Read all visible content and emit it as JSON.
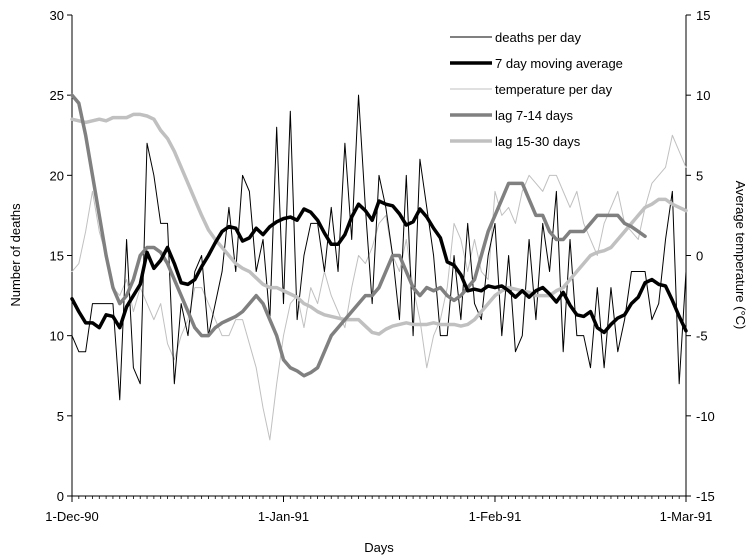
{
  "chart_data": {
    "type": "line",
    "title": "",
    "xlabel": "Days",
    "ylabel": "Number of deaths",
    "y2label": "Average temperature (°C)",
    "ylim": [
      0,
      30
    ],
    "y2lim": [
      -15,
      15
    ],
    "yticks": [
      "0",
      "5",
      "10",
      "15",
      "20",
      "25",
      "30"
    ],
    "y2ticks": [
      "-15",
      "-10",
      "-5",
      "0",
      "5",
      "10",
      "15"
    ],
    "x_start": "1-Dec-90",
    "x_end": "1-Mar-91",
    "xticks": [
      {
        "label": "1-Dec-90",
        "day": 0
      },
      {
        "label": "1-Jan-91",
        "day": 31
      },
      {
        "label": "1-Feb-91",
        "day": 62
      },
      {
        "label": "1-Mar-91",
        "day": 90
      }
    ],
    "legend_position": "top-right",
    "grid": false,
    "series": [
      {
        "name": "deaths per day",
        "axis": "left",
        "color": "#000000",
        "width": 1,
        "values": [
          10,
          9,
          9,
          12,
          12,
          12,
          12,
          6,
          16,
          8,
          7,
          22,
          20,
          17,
          17,
          7,
          12,
          10,
          14,
          15,
          10,
          12,
          14,
          18,
          14,
          20,
          19,
          14,
          16,
          11,
          23,
          12,
          24,
          11,
          15,
          17,
          17,
          14,
          18,
          14,
          22,
          16,
          25,
          18,
          12,
          20,
          18,
          15,
          11,
          20,
          10,
          21,
          18,
          15,
          10,
          10,
          15,
          11,
          17,
          12,
          11,
          15,
          17,
          10,
          15,
          9,
          10,
          16,
          11,
          17,
          14,
          19,
          9,
          16,
          10,
          10,
          8,
          13,
          8,
          13,
          9,
          11,
          14,
          14,
          14,
          11,
          12,
          16,
          19,
          7,
          14
        ]
      },
      {
        "name": "7 day  moving average",
        "axis": "left",
        "color": "#000000",
        "width": 3.5,
        "values": [
          12.3,
          11.5,
          10.8,
          10.8,
          10.5,
          11.3,
          11.2,
          10.5,
          11.8,
          12.5,
          13.2,
          15.2,
          14.2,
          14.7,
          15.5,
          14.5,
          13.3,
          13.2,
          13.5,
          14.3,
          15,
          15.8,
          16.5,
          16.8,
          16.7,
          15.9,
          16.1,
          16.7,
          16.3,
          16.8,
          17.1,
          17.3,
          17.4,
          17.2,
          17.9,
          17.7,
          17.2,
          16.4,
          15.7,
          15.7,
          16.3,
          17.4,
          18.2,
          17.8,
          17.2,
          18.4,
          18.2,
          18.1,
          17.6,
          16.9,
          17.1,
          17.9,
          17.4,
          16.7,
          16.1,
          14.6,
          14.4,
          13.8,
          12.8,
          12.9,
          12.8,
          13.1,
          13,
          13.1,
          12.8,
          12.4,
          12.8,
          12.4,
          12.8,
          13,
          12.6,
          12.1,
          12.7,
          11.9,
          11.3,
          11.2,
          11.5,
          10.5,
          10.2,
          10.7,
          11.1,
          11.3,
          12,
          12.4,
          13.3,
          13.5,
          13.2,
          13.1,
          12.2,
          11.2,
          10.3
        ]
      },
      {
        "name": "temperature per day",
        "axis": "right",
        "color": "#c0c0c0",
        "width": 1,
        "values": [
          -1,
          -0.5,
          1.5,
          4,
          1.5,
          0,
          -2,
          -2.5,
          -1.5,
          -3.5,
          -2,
          -3,
          -4,
          -3,
          -5.5,
          -6.5,
          -5,
          -4,
          -2,
          -2,
          -3,
          -4,
          -5,
          -5,
          -4,
          -4,
          -5.5,
          -7,
          -9.5,
          -11.5,
          -8,
          -5,
          -3,
          -2.5,
          -4.5,
          -2,
          -3,
          -1,
          -2.5,
          -3.5,
          -4.5,
          -2,
          0,
          -0.5,
          0.5,
          2,
          2.5,
          0,
          -1,
          1,
          -2,
          -4,
          -7,
          -5,
          -4,
          -2,
          2,
          1,
          -1,
          1,
          -1,
          -1.5,
          4,
          2.5,
          3,
          2,
          4,
          5,
          4.5,
          4,
          5,
          5,
          4,
          3,
          4,
          2,
          1,
          0,
          2,
          3,
          4,
          2,
          1.5,
          1,
          3,
          4.5,
          5,
          5.5,
          7.5,
          6.5,
          5.5
        ]
      },
      {
        "name": "lag 7-14 days",
        "axis": "right",
        "color": "#808080",
        "width": 3.5,
        "values": [
          10,
          9.5,
          7.5,
          5,
          2.5,
          0,
          -2,
          -3,
          -2.5,
          -1.5,
          0,
          0.5,
          0.5,
          0.2,
          -0.5,
          -1.5,
          -2.5,
          -3.5,
          -4.5,
          -5,
          -5,
          -4.5,
          -4.2,
          -4,
          -3.8,
          -3.5,
          -3,
          -2.5,
          -3,
          -4,
          -5,
          -6.5,
          -7,
          -7.2,
          -7.5,
          -7.3,
          -7,
          -6,
          -5,
          -4.5,
          -4,
          -3.5,
          -3,
          -2.5,
          -2.5,
          -2,
          -1,
          0,
          0,
          -1,
          -2,
          -2.5,
          -2,
          -2.2,
          -2,
          -2.5,
          -2.8,
          -2.5,
          -2,
          -1.5,
          0,
          1.5,
          2.5,
          3.5,
          4.5,
          4.5,
          4.5,
          3.5,
          2.5,
          2.5,
          1.5,
          1,
          1,
          1.5,
          1.5,
          1.5,
          2,
          2.5,
          2.5,
          2.5,
          2.5,
          2,
          1.8,
          1.5,
          1.2
        ]
      },
      {
        "name": "lag 15-30 days",
        "axis": "right",
        "color": "#c0c0c0",
        "width": 3.5,
        "values": [
          8.5,
          8.4,
          8.3,
          8.4,
          8.5,
          8.4,
          8.6,
          8.6,
          8.6,
          8.8,
          8.8,
          8.7,
          8.5,
          7.8,
          7.3,
          6.5,
          5.5,
          4.5,
          3.5,
          2.5,
          1.6,
          1,
          0.5,
          0,
          -0.5,
          -0.8,
          -1,
          -1.4,
          -1.8,
          -2,
          -2,
          -2.2,
          -2.4,
          -2.6,
          -3,
          -3.2,
          -3.5,
          -3.7,
          -3.8,
          -3.9,
          -4,
          -4,
          -4,
          -4.4,
          -4.8,
          -4.9,
          -4.6,
          -4.4,
          -4.3,
          -4.2,
          -4.3,
          -4.3,
          -4.3,
          -4.2,
          -4.3,
          -4.3,
          -4.3,
          -4.4,
          -4.3,
          -4,
          -3.5,
          -3,
          -2.5,
          -2.2,
          -2,
          -2.1,
          -2.2,
          -2.3,
          -2.5,
          -2.5,
          -2.5,
          -2.2,
          -2,
          -1.5,
          -1,
          -0.5,
          0,
          0.2,
          0.3,
          0.5,
          1,
          1.5,
          2,
          2.5,
          3,
          3.2,
          3.5,
          3.5,
          3.2,
          3,
          2.8
        ]
      }
    ]
  }
}
